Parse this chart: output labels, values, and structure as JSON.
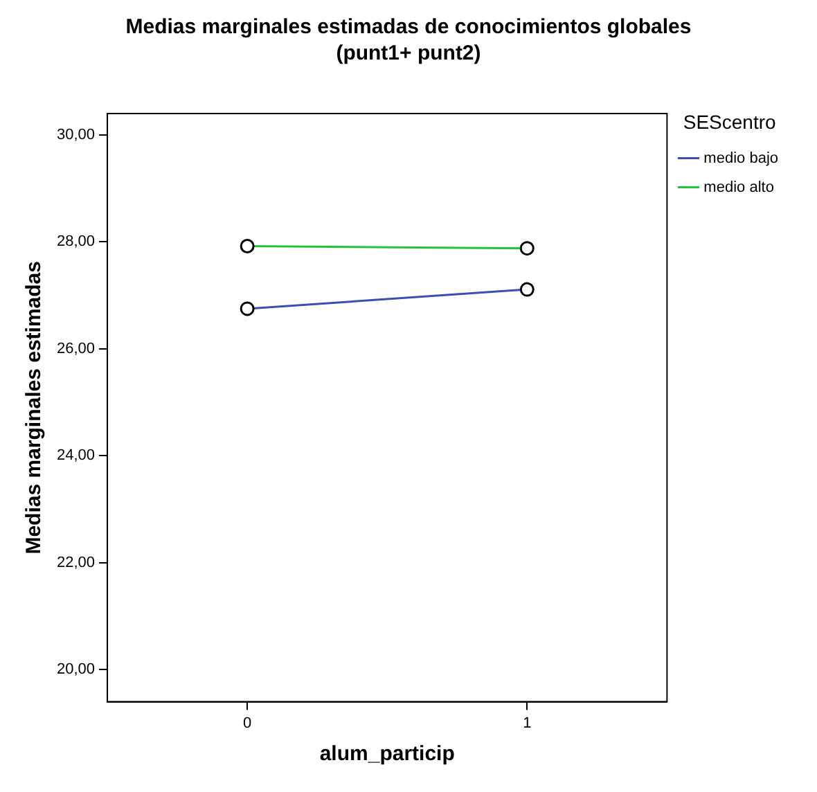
{
  "chart_data": {
    "type": "line",
    "title": "Medias marginales estimadas de conocimientos globales\n(punt1+ punt2)",
    "xlabel": "alum_particip",
    "ylabel": "Medias marginales estimadas",
    "legend_title": "SEScentro",
    "categories": [
      "0",
      "1"
    ],
    "series": [
      {
        "name": "medio bajo",
        "color": "#3a4fb0",
        "values": [
          26.75,
          27.11
        ]
      },
      {
        "name": "medio alto",
        "color": "#22c33a",
        "values": [
          27.92,
          27.88
        ]
      }
    ],
    "ylim": [
      19.4,
      30.4
    ],
    "yticks": [
      {
        "value": 20,
        "label": "20,00"
      },
      {
        "value": 22,
        "label": "22,00"
      },
      {
        "value": 24,
        "label": "24,00"
      },
      {
        "value": 26,
        "label": "26,00"
      },
      {
        "value": 28,
        "label": "28,00"
      },
      {
        "value": 30,
        "label": "30,00"
      }
    ],
    "grid": false,
    "legend": "top right",
    "marker": "circle",
    "line_style": "solid"
  }
}
